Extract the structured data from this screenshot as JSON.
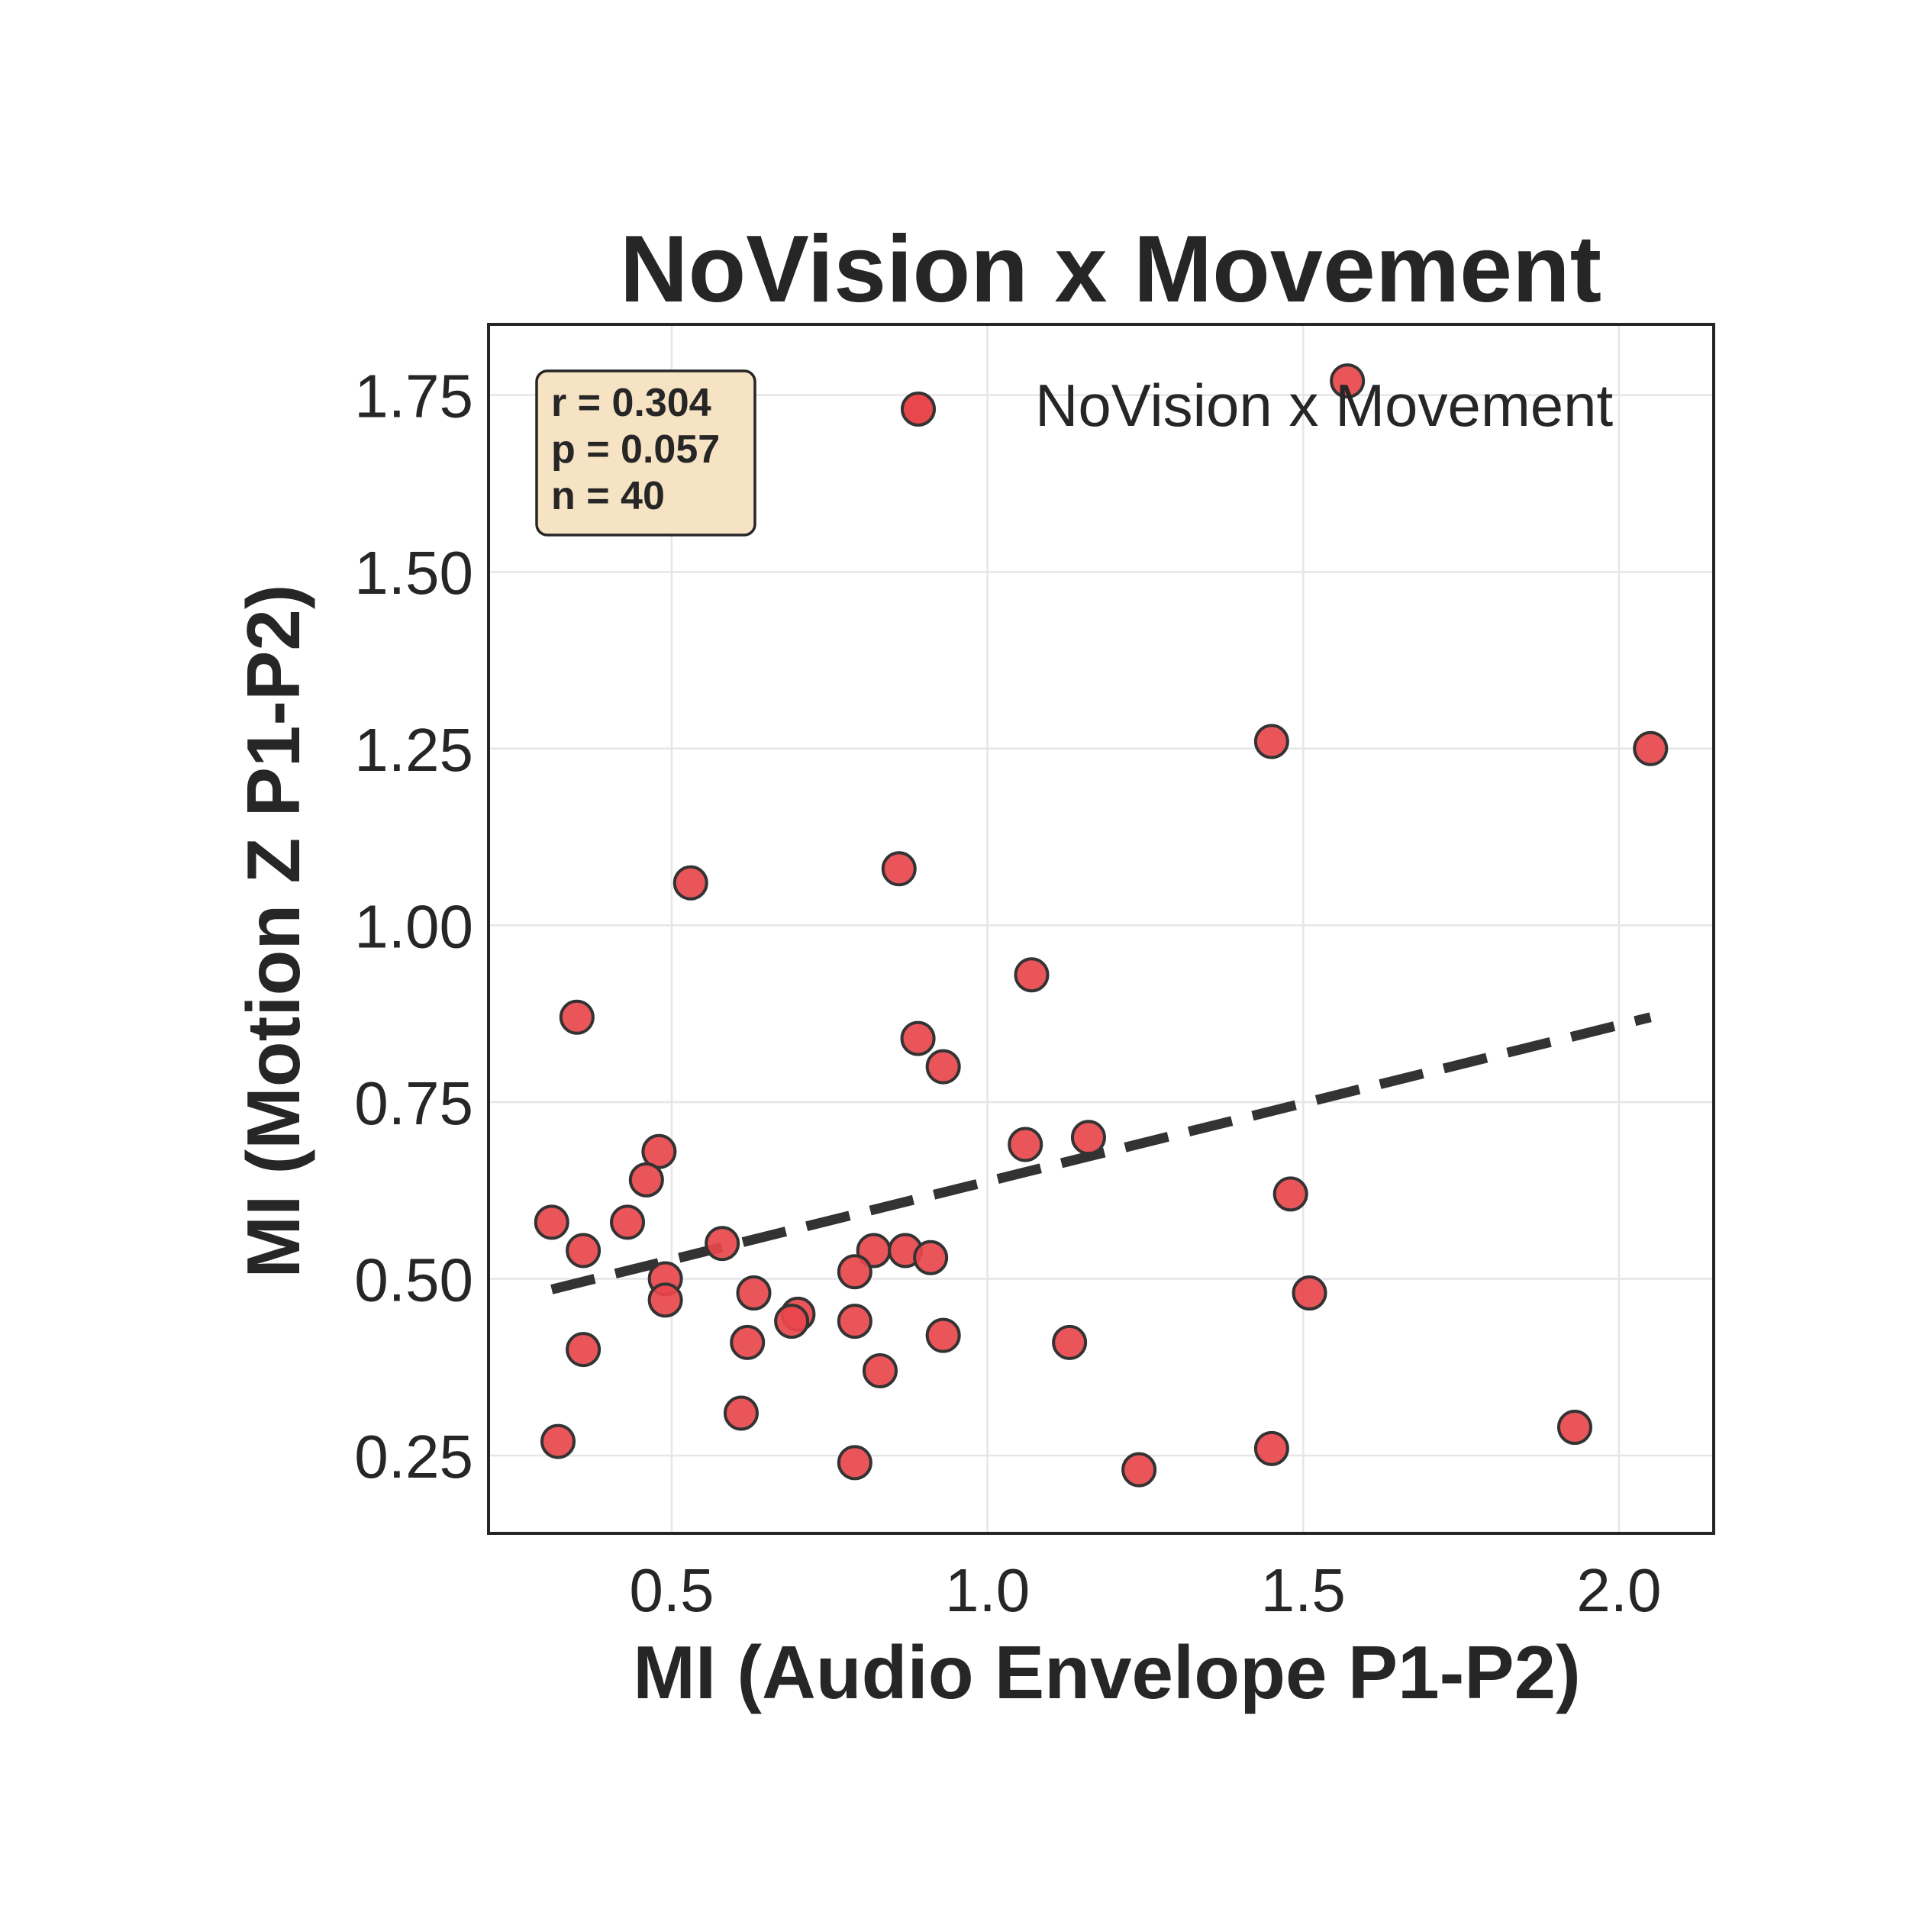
{
  "chart_data": {
    "type": "scatter",
    "title": "NoVision x Movement",
    "xlabel": "MI (Audio Envelope P1-P2)",
    "ylabel": "MI (Motion Z P1-P2)",
    "xlim": [
      0.21,
      2.15
    ],
    "ylim": [
      0.14,
      1.85
    ],
    "xticks": [
      0.5,
      1.0,
      1.5,
      2.0
    ],
    "xtick_labels": [
      "0.5",
      "1.0",
      "1.5",
      "2.0"
    ],
    "yticks": [
      0.25,
      0.5,
      0.75,
      1.0,
      1.25,
      1.5,
      1.75
    ],
    "ytick_labels": [
      "0.25",
      "0.50",
      "0.75",
      "1.00",
      "1.25",
      "1.50",
      "1.75"
    ],
    "grid": true,
    "legend": {
      "position": "top-right",
      "entries": [
        "NoVision x Movement"
      ]
    },
    "series": [
      {
        "name": "NoVision x Movement",
        "color": "#e8474c",
        "edge_color": "#333333",
        "x": [
          1.57,
          1.45,
          2.05,
          0.53,
          0.86,
          1.07,
          0.35,
          0.89,
          0.93,
          1.06,
          1.16,
          0.48,
          0.46,
          1.48,
          0.31,
          0.43,
          0.58,
          0.36,
          0.82,
          0.87,
          0.91,
          0.79,
          0.49,
          0.63,
          1.51,
          0.49,
          0.7,
          0.69,
          0.79,
          0.93,
          1.13,
          0.62,
          0.36,
          0.83,
          0.61,
          0.32,
          1.45,
          1.93,
          0.79,
          1.24
        ],
        "y": [
          1.77,
          1.26,
          1.25,
          1.06,
          1.08,
          0.93,
          0.87,
          0.84,
          0.8,
          0.69,
          0.7,
          0.68,
          0.64,
          0.62,
          0.58,
          0.58,
          0.55,
          0.54,
          0.54,
          0.54,
          0.53,
          0.51,
          0.5,
          0.48,
          0.48,
          0.47,
          0.45,
          0.44,
          0.44,
          0.42,
          0.41,
          0.41,
          0.4,
          0.37,
          0.31,
          0.27,
          0.26,
          0.29,
          0.24,
          0.23
        ]
      }
    ],
    "trendline": {
      "style": "dashed",
      "color": "#333333",
      "x": [
        0.31,
        2.05
      ],
      "y": [
        0.485,
        0.87
      ]
    },
    "annotation": {
      "lines": [
        "r = 0.304",
        "p = 0.057",
        "n = 40"
      ],
      "background": "#f6e3c3"
    }
  }
}
